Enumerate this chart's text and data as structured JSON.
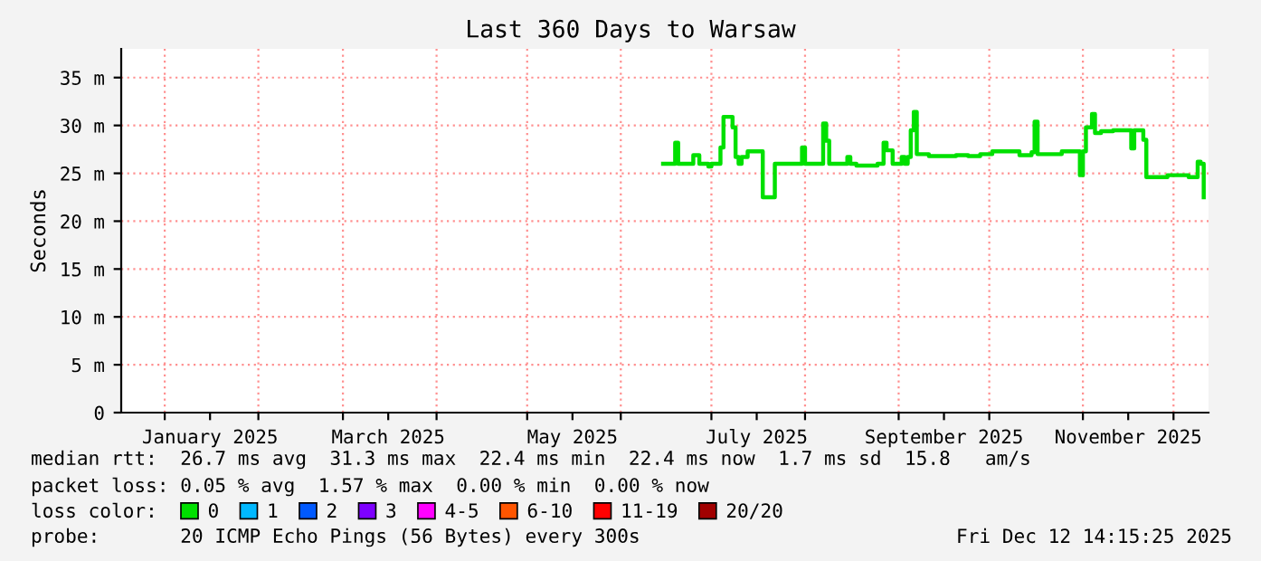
{
  "chart_data": {
    "type": "step",
    "title": "Last 360 Days to Warsaw",
    "ylabel": "Seconds",
    "xlim": [
      "2024-12-17T14:15",
      "2025-12-12T14:15"
    ],
    "xticks": [
      {
        "value": "2025-01-01",
        "label": null
      },
      {
        "value": "2025-01-16",
        "label": "January 2025"
      },
      {
        "value": "2025-02-01",
        "label": null
      },
      {
        "value": "2025-03-01",
        "label": null
      },
      {
        "value": "2025-03-16",
        "label": "March 2025"
      },
      {
        "value": "2025-04-01",
        "label": null
      },
      {
        "value": "2025-05-01",
        "label": null
      },
      {
        "value": "2025-05-16",
        "label": "May 2025"
      },
      {
        "value": "2025-06-01",
        "label": null
      },
      {
        "value": "2025-07-01",
        "label": null
      },
      {
        "value": "2025-07-16",
        "label": "July 2025"
      },
      {
        "value": "2025-08-01",
        "label": null
      },
      {
        "value": "2025-09-01",
        "label": null
      },
      {
        "value": "2025-09-16",
        "label": "September 2025"
      },
      {
        "value": "2025-10-01",
        "label": null
      },
      {
        "value": "2025-11-01",
        "label": null
      },
      {
        "value": "2025-11-16",
        "label": "November 2025"
      },
      {
        "value": "2025-12-01",
        "label": null
      }
    ],
    "ylim": [
      0,
      38
    ],
    "yticks": [
      0,
      {
        "value": 5,
        "label": "5 m"
      },
      {
        "value": 10,
        "label": "10 m"
      },
      {
        "value": 15,
        "label": "15 m"
      },
      {
        "value": 20,
        "label": "20 m"
      },
      {
        "value": 25,
        "label": "25 m"
      },
      {
        "value": 30,
        "label": "30 m"
      },
      {
        "value": 35,
        "label": "35 m"
      }
    ],
    "grid": true,
    "legend": "bottom",
    "legend_title": "loss color:",
    "x": [
      "2025-06-15",
      "2025-06-18",
      "2025-06-19",
      "2025-06-20",
      "2025-06-24",
      "2025-06-25",
      "2025-06-27",
      "2025-06-30",
      "2025-07-01",
      "2025-07-04",
      "2025-07-05",
      "2025-07-07",
      "2025-07-08",
      "2025-07-09",
      "2025-07-10",
      "2025-07-11",
      "2025-07-13",
      "2025-07-17",
      "2025-07-18",
      "2025-07-21",
      "2025-07-22",
      "2025-07-30",
      "2025-07-31",
      "2025-08-01",
      "2025-08-06",
      "2025-08-07",
      "2025-08-08",
      "2025-08-09",
      "2025-08-15",
      "2025-08-16",
      "2025-08-18",
      "2025-08-25",
      "2025-08-27",
      "2025-08-28",
      "2025-08-30",
      "2025-09-02",
      "2025-09-03",
      "2025-09-04",
      "2025-09-05",
      "2025-09-06",
      "2025-09-07",
      "2025-09-10",
      "2025-09-11",
      "2025-09-20",
      "2025-09-24",
      "2025-09-28",
      "2025-10-02",
      "2025-10-09",
      "2025-10-11",
      "2025-10-15",
      "2025-10-16",
      "2025-10-17",
      "2025-10-19",
      "2025-10-25",
      "2025-10-30",
      "2025-10-31",
      "2025-11-01",
      "2025-11-02",
      "2025-11-04",
      "2025-11-05",
      "2025-11-07",
      "2025-11-11",
      "2025-11-16",
      "2025-11-17",
      "2025-11-18",
      "2025-11-21",
      "2025-11-22",
      "2025-11-28",
      "2025-11-29",
      "2025-12-05",
      "2025-12-06",
      "2025-12-09",
      "2025-12-10",
      "2025-12-11"
    ],
    "series": [
      {
        "name": "0",
        "color": "#00e000",
        "values": [
          26.0,
          26.0,
          28.2,
          26.0,
          26.0,
          26.9,
          26.0,
          25.7,
          26.0,
          27.7,
          30.9,
          30.9,
          29.8,
          26.7,
          26.0,
          26.7,
          27.3,
          27.3,
          22.5,
          22.5,
          26.0,
          26.0,
          27.7,
          26.0,
          26.0,
          30.2,
          28.4,
          26.0,
          26.7,
          26.0,
          25.8,
          26.0,
          28.2,
          27.4,
          26.0,
          26.7,
          26.0,
          26.7,
          29.5,
          31.4,
          27.0,
          27.0,
          26.8,
          26.9,
          26.8,
          27.0,
          27.3,
          27.3,
          26.9,
          27.2,
          30.4,
          27.0,
          27.0,
          27.3,
          27.3,
          24.8,
          27.3,
          29.8,
          31.2,
          29.2,
          29.4,
          29.5,
          29.5,
          27.6,
          29.5,
          28.5,
          24.6,
          24.6,
          24.8,
          24.8,
          24.6,
          26.2,
          26.0,
          22.5
        ]
      },
      {
        "name": "1",
        "color": "#00b8ff",
        "values": [
          null,
          null,
          null,
          null,
          null,
          null,
          null,
          null,
          null,
          null,
          null,
          null,
          null,
          null,
          null,
          null,
          null,
          null,
          null,
          null,
          null,
          null,
          null,
          null,
          null,
          null,
          null,
          null,
          null,
          null,
          null,
          null,
          null,
          null,
          null,
          null,
          null,
          null,
          null,
          null,
          null,
          null,
          null,
          null,
          null,
          null,
          null,
          null,
          null,
          null,
          null,
          null,
          null,
          null,
          null,
          null,
          null,
          null,
          null,
          null,
          null,
          null,
          null,
          null,
          null,
          null,
          null,
          null,
          null,
          null,
          null,
          null,
          null,
          null
        ]
      },
      {
        "name": "2",
        "color": "#0059ff",
        "values": [
          null,
          null,
          null,
          null,
          null,
          null,
          null,
          null,
          null,
          null,
          null,
          null,
          null,
          null,
          null,
          null,
          null,
          null,
          null,
          null,
          null,
          null,
          null,
          null,
          null,
          null,
          null,
          null,
          null,
          null,
          null,
          null,
          null,
          null,
          null,
          null,
          null,
          null,
          null,
          null,
          null,
          null,
          null,
          null,
          null,
          null,
          null,
          null,
          null,
          null,
          null,
          null,
          null,
          null,
          null,
          null,
          null,
          null,
          null,
          null,
          null,
          null,
          null,
          null,
          null,
          null,
          null,
          null,
          null,
          null,
          null,
          null,
          null,
          null
        ]
      },
      {
        "name": "3",
        "color": "#7e00ff",
        "values": [
          null,
          null,
          null,
          null,
          null,
          null,
          null,
          null,
          null,
          null,
          null,
          null,
          null,
          null,
          null,
          null,
          null,
          null,
          null,
          null,
          null,
          null,
          null,
          null,
          null,
          null,
          null,
          null,
          null,
          null,
          null,
          null,
          null,
          null,
          null,
          null,
          null,
          null,
          null,
          null,
          null,
          null,
          null,
          null,
          null,
          null,
          null,
          null,
          null,
          null,
          null,
          null,
          null,
          null,
          null,
          null,
          null,
          null,
          null,
          null,
          null,
          null,
          null,
          null,
          null,
          null,
          null,
          null,
          null,
          null,
          null,
          null,
          null,
          null
        ]
      },
      {
        "name": "4-5",
        "color": "#ff00ff",
        "values": [
          null,
          null,
          null,
          null,
          null,
          null,
          null,
          null,
          null,
          null,
          null,
          null,
          null,
          null,
          null,
          null,
          null,
          null,
          null,
          null,
          null,
          null,
          null,
          null,
          null,
          null,
          null,
          null,
          null,
          null,
          null,
          null,
          null,
          null,
          null,
          null,
          null,
          null,
          null,
          null,
          null,
          null,
          null,
          null,
          null,
          null,
          null,
          null,
          null,
          null,
          null,
          null,
          null,
          null,
          null,
          null,
          null,
          null,
          null,
          null,
          null,
          null,
          null,
          null,
          null,
          null,
          null,
          null,
          null,
          null,
          null,
          null,
          null,
          null
        ]
      },
      {
        "name": "6-10",
        "color": "#ff5500",
        "values": [
          null,
          null,
          null,
          null,
          null,
          null,
          null,
          null,
          null,
          null,
          null,
          null,
          null,
          null,
          null,
          null,
          null,
          null,
          null,
          null,
          null,
          null,
          null,
          null,
          null,
          null,
          null,
          null,
          null,
          null,
          null,
          null,
          null,
          null,
          null,
          null,
          null,
          null,
          null,
          null,
          null,
          null,
          null,
          null,
          null,
          null,
          null,
          null,
          null,
          null,
          null,
          null,
          null,
          null,
          null,
          null,
          null,
          null,
          null,
          null,
          null,
          null,
          null,
          null,
          null,
          null,
          null,
          null,
          null,
          null,
          null,
          null,
          null,
          null
        ]
      },
      {
        "name": "11-19",
        "color": "#ff0000",
        "values": [
          null,
          null,
          null,
          null,
          null,
          null,
          null,
          null,
          null,
          null,
          null,
          null,
          null,
          null,
          null,
          null,
          null,
          null,
          null,
          null,
          null,
          null,
          null,
          null,
          null,
          null,
          null,
          null,
          null,
          null,
          null,
          null,
          null,
          null,
          null,
          null,
          null,
          null,
          null,
          null,
          null,
          null,
          null,
          null,
          null,
          null,
          null,
          null,
          null,
          null,
          null,
          null,
          null,
          null,
          null,
          null,
          null,
          null,
          null,
          null,
          null,
          null,
          null,
          null,
          null,
          null,
          null,
          null,
          null,
          null,
          null,
          null,
          null,
          null
        ]
      },
      {
        "name": "20/20",
        "color": "#a10000",
        "values": [
          null,
          null,
          null,
          null,
          null,
          null,
          null,
          null,
          null,
          null,
          null,
          null,
          null,
          null,
          null,
          null,
          null,
          null,
          null,
          null,
          null,
          null,
          null,
          null,
          null,
          null,
          null,
          null,
          null,
          null,
          null,
          null,
          null,
          null,
          null,
          null,
          null,
          null,
          null,
          null,
          null,
          null,
          null,
          null,
          null,
          null,
          null,
          null,
          null,
          null,
          null,
          null,
          null,
          null,
          null,
          null,
          null,
          null,
          null,
          null,
          null,
          null,
          null,
          null,
          null,
          null,
          null,
          null,
          null,
          null,
          null,
          null,
          null,
          null
        ]
      }
    ],
    "annotations": [
      "median rtt:  26.7 ms avg  31.3 ms max  22.4 ms min  22.4 ms now  1.7 ms sd  15.8   am/s",
      "packet loss: 0.05 % avg  1.57 % max  0.00 % min  0.00 % now",
      "probe:       20 ICMP Echo Pings (56 Bytes) every 300s",
      "Fri Dec 12 14:15:25 2025"
    ]
  }
}
